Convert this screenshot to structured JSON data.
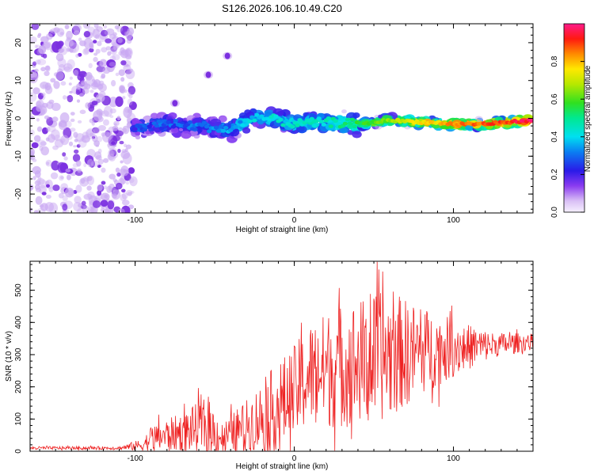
{
  "title": "S126.2026.106.10.49.C20",
  "colors": {
    "snr_line": "#ee2222",
    "scatter": "#7b2fe0",
    "scatter_light": "#c9a8f2",
    "axis": "#000000"
  },
  "chart_data": [
    {
      "type": "heatmap",
      "name": "spectrogram",
      "xlabel": "Height of straight line (km)",
      "ylabel": "Frequency (Hz)",
      "xlim": [
        -166,
        150
      ],
      "ylim": [
        -25,
        25
      ],
      "xticks": [
        -100,
        0,
        100
      ],
      "yticks": [
        -20,
        -10,
        0,
        10,
        20
      ],
      "xtick_labels": [
        "-100",
        "0",
        "100"
      ],
      "ytick_labels": [
        "-20",
        "-10",
        "0",
        "10",
        "20"
      ],
      "colorbar": {
        "label": "Normalized spectral amplitude",
        "range": [
          0,
          1
        ],
        "ticks": [
          0.0,
          0.2,
          0.4,
          0.6,
          0.8
        ],
        "tick_labels": [
          "0.0",
          "0.2",
          "0.4",
          "0.6",
          "0.8"
        ]
      },
      "noise_region_x": [
        -166,
        -101
      ],
      "ridge_centerline": [
        {
          "x": -100,
          "y": -2.5
        },
        {
          "x": -80,
          "y": -1.5
        },
        {
          "x": -60,
          "y": -2.0
        },
        {
          "x": -40,
          "y": -3.0
        },
        {
          "x": -25,
          "y": 0.5
        },
        {
          "x": -10,
          "y": -0.5
        },
        {
          "x": 0,
          "y": -1.5
        },
        {
          "x": 20,
          "y": -1.0
        },
        {
          "x": 40,
          "y": -1.5
        },
        {
          "x": 60,
          "y": -0.5
        },
        {
          "x": 80,
          "y": -1.0
        },
        {
          "x": 100,
          "y": -1.5
        },
        {
          "x": 120,
          "y": -1.5
        },
        {
          "x": 150,
          "y": -0.5
        }
      ],
      "ridge_amplitude": [
        {
          "x": -100,
          "a": 0.25
        },
        {
          "x": -60,
          "a": 0.3
        },
        {
          "x": -20,
          "a": 0.4
        },
        {
          "x": 20,
          "a": 0.45
        },
        {
          "x": 50,
          "a": 0.6
        },
        {
          "x": 80,
          "a": 0.75
        },
        {
          "x": 110,
          "a": 0.85
        },
        {
          "x": 150,
          "a": 0.95
        }
      ],
      "isolated_blobs": [
        {
          "x": -42,
          "y": 16.5,
          "a": 0.15
        },
        {
          "x": -54,
          "y": 11.5,
          "a": 0.15
        },
        {
          "x": -75,
          "y": 4.0,
          "a": 0.25
        }
      ]
    },
    {
      "type": "line",
      "name": "snr",
      "xlabel": "Height of straight line (km)",
      "ylabel": "SNR (10 * v/v)",
      "xlim": [
        -166,
        150
      ],
      "ylim": [
        0,
        590
      ],
      "xticks": [
        -100,
        0,
        100
      ],
      "yticks": [
        0,
        100,
        200,
        300,
        400,
        500
      ],
      "xtick_labels": [
        "-100",
        "0",
        "100"
      ],
      "ytick_labels": [
        "0",
        "100",
        "200",
        "300",
        "400",
        "500"
      ],
      "envelope": [
        {
          "x": -166,
          "base": 10,
          "amp": 5
        },
        {
          "x": -110,
          "base": 10,
          "amp": 5
        },
        {
          "x": -95,
          "base": 20,
          "amp": 20
        },
        {
          "x": -90,
          "base": 40,
          "amp": 40
        },
        {
          "x": -70,
          "base": 60,
          "amp": 60
        },
        {
          "x": -55,
          "base": 80,
          "amp": 90
        },
        {
          "x": -45,
          "base": 40,
          "amp": 50
        },
        {
          "x": -30,
          "base": 80,
          "amp": 80
        },
        {
          "x": -15,
          "base": 120,
          "amp": 130
        },
        {
          "x": 0,
          "base": 180,
          "amp": 150
        },
        {
          "x": 10,
          "base": 240,
          "amp": 160
        },
        {
          "x": 25,
          "base": 260,
          "amp": 190
        },
        {
          "x": 45,
          "base": 280,
          "amp": 200
        },
        {
          "x": 60,
          "base": 300,
          "amp": 200
        },
        {
          "x": 75,
          "base": 310,
          "amp": 150
        },
        {
          "x": 100,
          "base": 320,
          "amp": 90
        },
        {
          "x": 125,
          "base": 330,
          "amp": 40
        },
        {
          "x": 150,
          "base": 340,
          "amp": 25
        }
      ]
    }
  ]
}
